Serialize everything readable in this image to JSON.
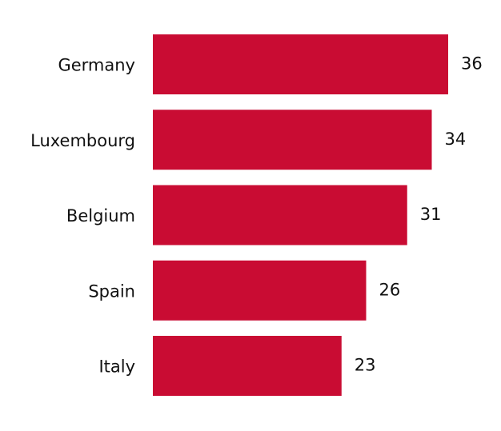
{
  "chart_data": {
    "type": "bar",
    "orientation": "horizontal",
    "categories": [
      "Germany",
      "Luxembourg",
      "Belgium",
      "Spain",
      "Italy"
    ],
    "values": [
      36,
      34,
      31,
      26,
      23
    ],
    "color": "#c90c33"
  }
}
